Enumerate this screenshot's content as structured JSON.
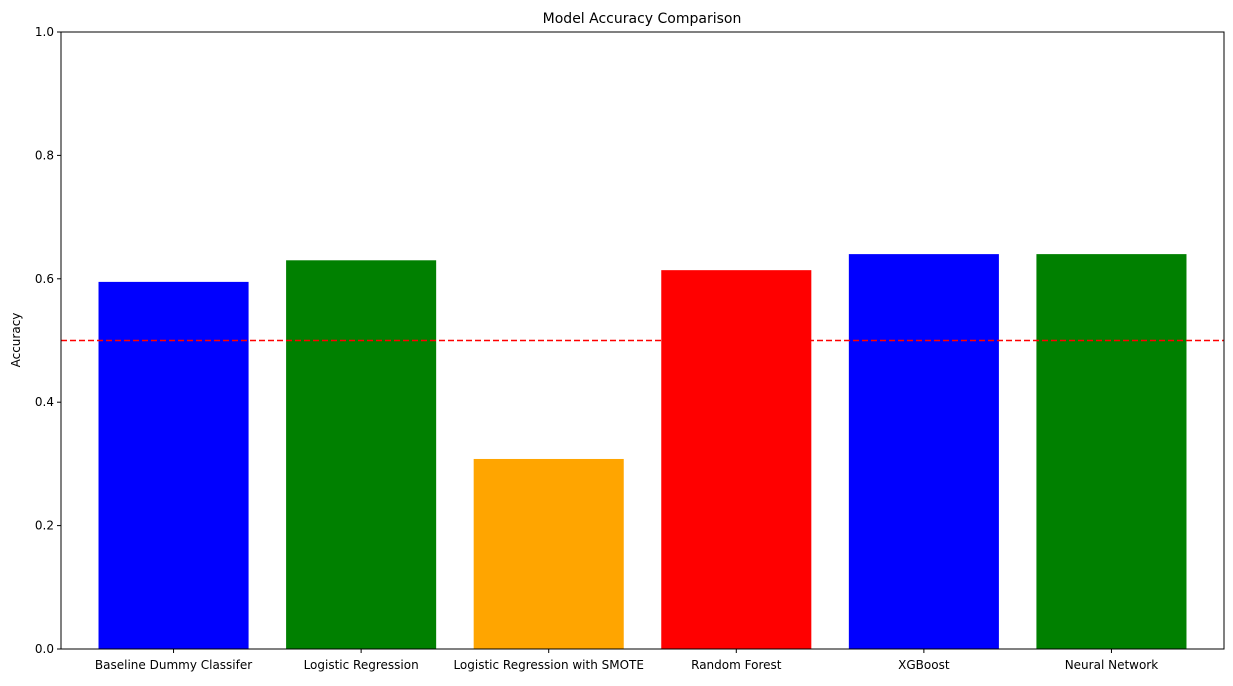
{
  "chart_data": {
    "type": "bar",
    "title": "Model Accuracy Comparison",
    "xlabel": "",
    "ylabel": "Accuracy",
    "categories": [
      "Baseline Dummy Classifer",
      "Logistic Regression",
      "Logistic Regression with SMOTE",
      "Random Forest",
      "XGBoost",
      "Neural Network"
    ],
    "values": [
      0.595,
      0.63,
      0.308,
      0.614,
      0.64,
      0.64
    ],
    "colors": [
      "#0000ff",
      "#008000",
      "#ffa500",
      "#ff0000",
      "#0000ff",
      "#008000"
    ],
    "ylim": [
      0,
      1.0
    ],
    "yticks": [
      "0.0",
      "0.2",
      "0.4",
      "0.6",
      "0.8",
      "1.0"
    ],
    "reference_line": {
      "y": 0.5,
      "color": "#ff0000",
      "style": "dashed"
    },
    "grid": false,
    "legend": "none"
  }
}
